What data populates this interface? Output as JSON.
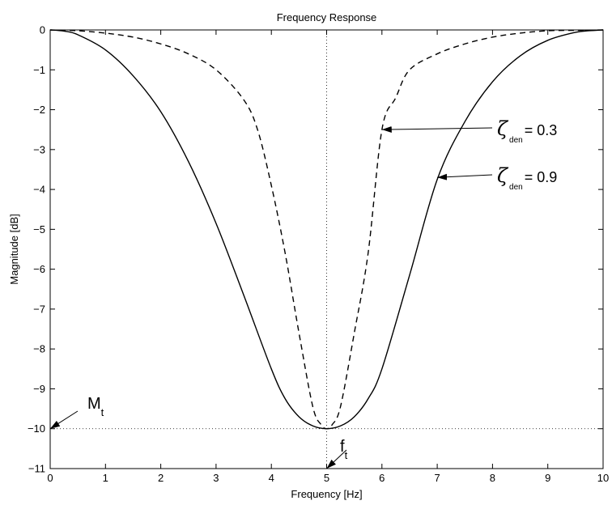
{
  "chart_data": {
    "type": "line",
    "title": "Frequency Response",
    "xlabel": "Frequency [Hz]",
    "ylabel": "Magnitude [dB]",
    "xlim": [
      0,
      10
    ],
    "ylim": [
      -11,
      0
    ],
    "xticks": [
      0,
      1,
      2,
      3,
      4,
      5,
      6,
      7,
      8,
      9,
      10
    ],
    "yticks": [
      0,
      -1,
      -2,
      -3,
      -4,
      -5,
      -6,
      -7,
      -8,
      -9,
      -10,
      -11
    ],
    "grid": false,
    "colors": {
      "line": "#000000",
      "background": "#ffffff"
    },
    "series": [
      {
        "line_style": "dashed",
        "x": [
          0,
          0.5,
          1,
          1.5,
          2,
          2.5,
          3,
          3.5,
          3.75,
          4,
          4.25,
          4.5,
          4.75,
          4.9,
          5,
          5.1,
          5.25,
          5.5,
          5.75,
          6,
          6.25,
          6.5,
          7,
          7.5,
          8,
          8.5,
          9,
          9.5,
          10
        ],
        "y": [
          0,
          -0.02,
          -0.08,
          -0.18,
          -0.35,
          -0.6,
          -1.0,
          -1.75,
          -2.5,
          -3.9,
          -5.6,
          -7.6,
          -9.45,
          -9.9,
          -10,
          -9.9,
          -9.45,
          -7.6,
          -5.6,
          -2.5,
          -1.7,
          -1.0,
          -0.6,
          -0.35,
          -0.18,
          -0.08,
          -0.02,
          -0.01,
          0
        ]
      },
      {
        "line_style": "solid",
        "x": [
          0,
          0.25,
          0.5,
          1,
          1.5,
          2,
          2.5,
          3,
          3.5,
          4,
          4.25,
          4.5,
          4.75,
          5,
          5.25,
          5.5,
          5.75,
          6,
          6.5,
          7,
          7.5,
          8,
          8.5,
          9,
          9.5,
          9.75,
          10
        ],
        "y": [
          0,
          -0.03,
          -0.12,
          -0.5,
          -1.15,
          -2.05,
          -3.3,
          -4.85,
          -6.65,
          -8.5,
          -9.25,
          -9.7,
          -9.93,
          -10,
          -9.93,
          -9.7,
          -9.25,
          -8.5,
          -6.15,
          -3.75,
          -2.3,
          -1.3,
          -0.65,
          -0.26,
          -0.06,
          -0.02,
          0
        ]
      }
    ],
    "annotations": [
      {
        "symbol": "ζ",
        "subscript": "den",
        "text": "= 0.3",
        "arrow_to": [
          6.0,
          -2.5
        ]
      },
      {
        "symbol": "ζ",
        "subscript": "den",
        "text": "= 0.9",
        "arrow_to": [
          7.0,
          -3.7
        ]
      },
      {
        "symbol": "M",
        "subscript": "t",
        "text": "",
        "arrow_to": [
          0,
          -10
        ]
      },
      {
        "symbol": "f",
        "subscript": "t",
        "text": "",
        "arrow_to": [
          5,
          -11
        ]
      }
    ],
    "reference_lines": [
      {
        "orientation": "horizontal",
        "value": -10
      },
      {
        "orientation": "vertical",
        "value": 5
      }
    ]
  }
}
